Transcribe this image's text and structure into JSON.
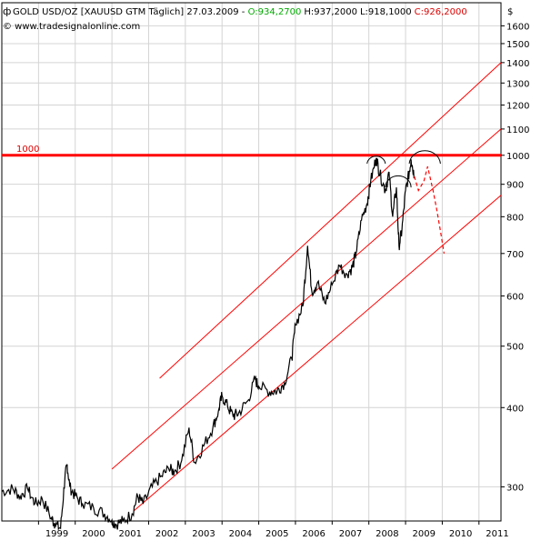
{
  "header": {
    "symbol_icon": "gold-symbol-icon",
    "title": "GOLD USD/OZ [XAUUSD GTM  Täglich] 27.03.2009 - ",
    "ohlc": {
      "open": "O:934,2700",
      "high": "H:937,2000",
      "low": "L:918,1000",
      "close": "C:926,2000",
      "open_color": "#00aa00",
      "close_color": "#dd0000"
    },
    "source": "© www.tradesignalonline.com",
    "currency": "$"
  },
  "chart_data": {
    "type": "line",
    "title": "GOLD USD/OZ [XAUUSD GTM  Täglich] 27.03.2009",
    "y_scale": "log",
    "ylim": [
      265,
      1740
    ],
    "y_ticks": [
      300,
      400,
      500,
      600,
      700,
      800,
      900,
      1000,
      1100,
      1200,
      1300,
      1400,
      1500,
      1600
    ],
    "x_ticks": [
      "1999",
      "2000",
      "2001",
      "2002",
      "2003",
      "2004",
      "2005",
      "2006",
      "2007",
      "2008",
      "2009",
      "2010",
      "2011"
    ],
    "xlim": [
      "1998.0",
      "2011.6"
    ],
    "grid": true,
    "series": [
      {
        "role": "price",
        "color": "#000000",
        "points": [
          [
            1998.0,
            295
          ],
          [
            1998.3,
            298
          ],
          [
            1998.5,
            290
          ],
          [
            1998.7,
            298
          ],
          [
            1998.9,
            282
          ],
          [
            1999.1,
            287
          ],
          [
            1999.35,
            268
          ],
          [
            1999.45,
            262
          ],
          [
            1999.6,
            258
          ],
          [
            1999.72,
            310
          ],
          [
            1999.78,
            325
          ],
          [
            1999.85,
            300
          ],
          [
            2000.0,
            290
          ],
          [
            2000.2,
            282
          ],
          [
            2000.5,
            278
          ],
          [
            2000.8,
            272
          ],
          [
            2001.0,
            266
          ],
          [
            2001.1,
            262
          ],
          [
            2001.3,
            265
          ],
          [
            2001.55,
            272
          ],
          [
            2001.7,
            290
          ],
          [
            2001.85,
            282
          ],
          [
            2002.1,
            300
          ],
          [
            2002.35,
            312
          ],
          [
            2002.55,
            320
          ],
          [
            2002.7,
            317
          ],
          [
            2002.9,
            330
          ],
          [
            2003.1,
            372
          ],
          [
            2003.25,
            328
          ],
          [
            2003.5,
            348
          ],
          [
            2003.75,
            372
          ],
          [
            2003.9,
            395
          ],
          [
            2004.0,
            418
          ],
          [
            2004.15,
            402
          ],
          [
            2004.3,
            388
          ],
          [
            2004.45,
            392
          ],
          [
            2004.7,
            410
          ],
          [
            2004.9,
            443
          ],
          [
            2005.0,
            432
          ],
          [
            2005.3,
            424
          ],
          [
            2005.5,
            425
          ],
          [
            2005.7,
            438
          ],
          [
            2005.9,
            478
          ],
          [
            2006.0,
            540
          ],
          [
            2006.2,
            578
          ],
          [
            2006.33,
            720
          ],
          [
            2006.45,
            608
          ],
          [
            2006.6,
            630
          ],
          [
            2006.8,
            585
          ],
          [
            2007.0,
            625
          ],
          [
            2007.2,
            670
          ],
          [
            2007.4,
            650
          ],
          [
            2007.55,
            665
          ],
          [
            2007.65,
            700
          ],
          [
            2007.8,
            790
          ],
          [
            2007.95,
            840
          ],
          [
            2008.05,
            910
          ],
          [
            2008.2,
            990
          ],
          [
            2008.3,
            935
          ],
          [
            2008.45,
            880
          ],
          [
            2008.55,
            940
          ],
          [
            2008.65,
            800
          ],
          [
            2008.75,
            890
          ],
          [
            2008.82,
            720
          ],
          [
            2008.9,
            760
          ],
          [
            2009.0,
            880
          ],
          [
            2009.1,
            940
          ],
          [
            2009.15,
            985
          ],
          [
            2009.24,
            926
          ]
        ]
      },
      {
        "role": "channel-upper",
        "color": "#ff0000",
        "points": [
          [
            2002.3,
            445
          ],
          [
            2011.6,
            1400
          ]
        ]
      },
      {
        "role": "channel-middle",
        "color": "#ff0000",
        "points": [
          [
            2001.0,
            320
          ],
          [
            2011.6,
            1100
          ]
        ]
      },
      {
        "role": "channel-lower",
        "color": "#ff0000",
        "points": [
          [
            2001.6,
            275
          ],
          [
            2011.6,
            865
          ]
        ]
      },
      {
        "role": "scenario-path",
        "color": "#ff0000",
        "dashed": true,
        "points": [
          [
            2009.24,
            926
          ],
          [
            2009.35,
            880
          ],
          [
            2009.5,
            910
          ],
          [
            2009.6,
            960
          ],
          [
            2009.75,
            880
          ],
          [
            2009.85,
            820
          ],
          [
            2009.95,
            760
          ],
          [
            2010.05,
            700
          ]
        ]
      }
    ],
    "annotations": [
      {
        "type": "hline",
        "value": 1000,
        "label": "1000",
        "color": "#ff0000"
      },
      {
        "type": "arc",
        "name": "shoulder-left",
        "x_start": 2007.95,
        "x_end": 2008.45,
        "y": 970
      },
      {
        "type": "arc",
        "name": "shoulder-right",
        "x_start": 2009.1,
        "x_end": 2009.95,
        "y": 970
      },
      {
        "type": "arc",
        "name": "head-center",
        "x_start": 2008.45,
        "x_end": 2009.15,
        "y": 890
      }
    ]
  }
}
